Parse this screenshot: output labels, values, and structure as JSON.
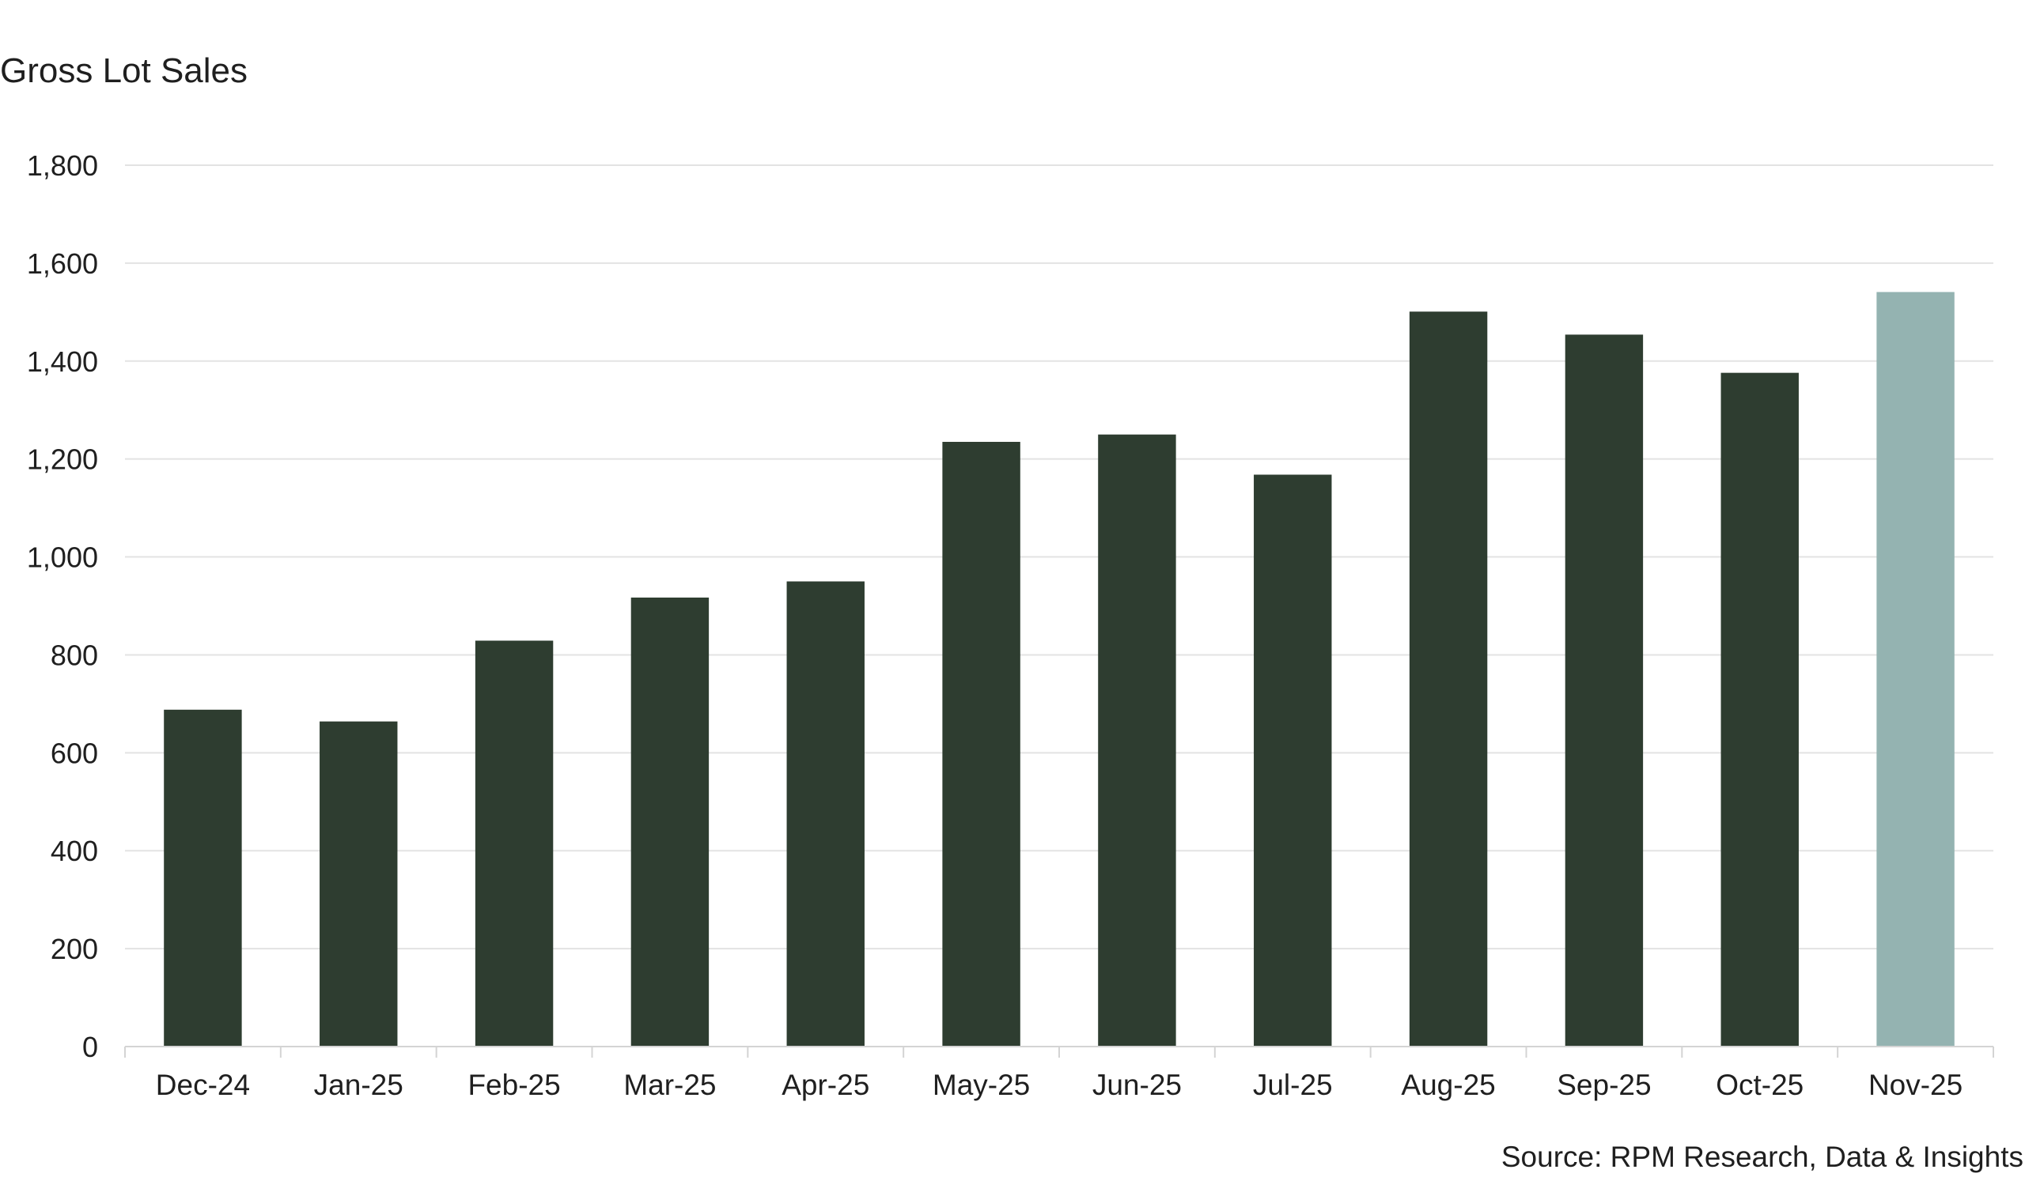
{
  "chart_data": {
    "type": "bar",
    "title": "Gross Lot Sales",
    "xlabel": "",
    "ylabel": "",
    "categories": [
      "Dec-24",
      "Jan-25",
      "Feb-25",
      "Mar-25",
      "Apr-25",
      "May-25",
      "Jun-25",
      "Jul-25",
      "Aug-25",
      "Sep-25",
      "Oct-25",
      "Nov-25"
    ],
    "values": [
      688,
      664,
      829,
      917,
      950,
      1235,
      1250,
      1168,
      1501,
      1454,
      1376,
      1541
    ],
    "bar_colors": [
      "#2e3d30",
      "#2e3d30",
      "#2e3d30",
      "#2e3d30",
      "#2e3d30",
      "#2e3d30",
      "#2e3d30",
      "#2e3d30",
      "#2e3d30",
      "#2e3d30",
      "#2e3d30",
      "#94b3b1"
    ],
    "ylim": [
      0,
      1800
    ],
    "yticks": [
      0,
      200,
      400,
      600,
      800,
      1000,
      1200,
      1400,
      1600,
      1800
    ],
    "ytick_labels": [
      "0",
      "200",
      "400",
      "600",
      "800",
      "1,000",
      "1,200",
      "1,400",
      "1,600",
      "1,800"
    ],
    "grid": true,
    "legend": "none",
    "source": "Source: RPM Research, Data & Insights"
  }
}
